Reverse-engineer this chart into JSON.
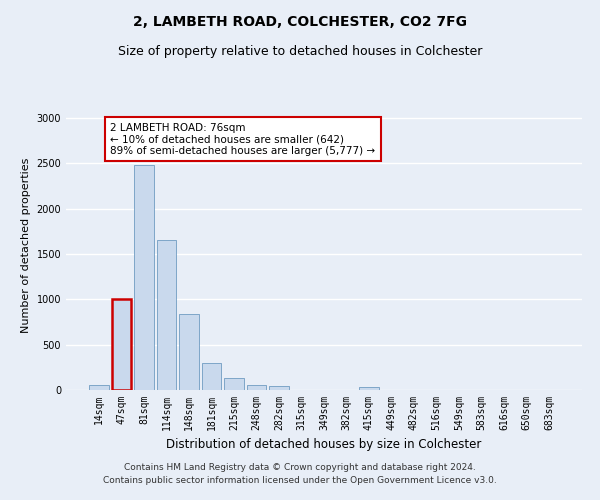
{
  "title": "2, LAMBETH ROAD, COLCHESTER, CO2 7FG",
  "subtitle": "Size of property relative to detached houses in Colchester",
  "xlabel": "Distribution of detached houses by size in Colchester",
  "ylabel": "Number of detached properties",
  "categories": [
    "14sqm",
    "47sqm",
    "81sqm",
    "114sqm",
    "148sqm",
    "181sqm",
    "215sqm",
    "248sqm",
    "282sqm",
    "315sqm",
    "349sqm",
    "382sqm",
    "415sqm",
    "449sqm",
    "482sqm",
    "516sqm",
    "549sqm",
    "583sqm",
    "616sqm",
    "650sqm",
    "683sqm"
  ],
  "values": [
    60,
    1000,
    2480,
    1650,
    840,
    300,
    130,
    55,
    45,
    5,
    5,
    5,
    35,
    5,
    5,
    0,
    0,
    0,
    0,
    0,
    0
  ],
  "bar_color": "#c9d9ed",
  "bar_edge_color": "#5b8db8",
  "highlight_bar_index": 1,
  "highlight_bar_edge_color": "#cc0000",
  "annotation_box_text": "2 LAMBETH ROAD: 76sqm\n← 10% of detached houses are smaller (642)\n89% of semi-detached houses are larger (5,777) →",
  "ylim": [
    0,
    3200
  ],
  "yticks": [
    0,
    500,
    1000,
    1500,
    2000,
    2500,
    3000
  ],
  "footer_line1": "Contains HM Land Registry data © Crown copyright and database right 2024.",
  "footer_line2": "Contains public sector information licensed under the Open Government Licence v3.0.",
  "bg_color": "#e8eef7",
  "plot_bg_color": "#e8eef7",
  "grid_color": "#ffffff",
  "title_fontsize": 10,
  "subtitle_fontsize": 9,
  "xlabel_fontsize": 8.5,
  "ylabel_fontsize": 8,
  "tick_fontsize": 7,
  "annotation_fontsize": 7.5,
  "footer_fontsize": 6.5
}
